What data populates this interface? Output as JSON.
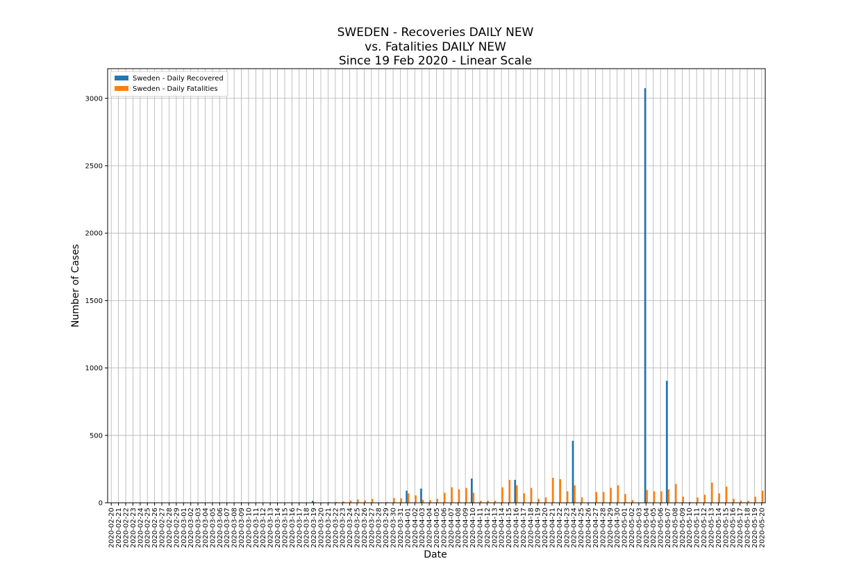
{
  "chart_data": {
    "type": "bar",
    "title": [
      "SWEDEN - Recoveries DAILY NEW",
      "vs. Fatalities DAILY NEW",
      "Since 19 Feb 2020 - Linear Scale"
    ],
    "xlabel": "Date",
    "ylabel": "Number of Cases",
    "ylim": [
      0,
      3220
    ],
    "yticks": [
      0,
      500,
      1000,
      1500,
      2000,
      2500,
      3000
    ],
    "grid": true,
    "legend_position": "top-left",
    "categories": [
      "2020-02-20",
      "2020-02-21",
      "2020-02-22",
      "2020-02-23",
      "2020-02-24",
      "2020-02-25",
      "2020-02-26",
      "2020-02-27",
      "2020-02-28",
      "2020-02-29",
      "2020-03-01",
      "2020-03-02",
      "2020-03-03",
      "2020-03-04",
      "2020-03-05",
      "2020-03-06",
      "2020-03-07",
      "2020-03-08",
      "2020-03-09",
      "2020-03-10",
      "2020-03-11",
      "2020-03-12",
      "2020-03-13",
      "2020-03-14",
      "2020-03-15",
      "2020-03-16",
      "2020-03-17",
      "2020-03-18",
      "2020-03-19",
      "2020-03-20",
      "2020-03-21",
      "2020-03-22",
      "2020-03-23",
      "2020-03-24",
      "2020-03-25",
      "2020-03-26",
      "2020-03-27",
      "2020-03-28",
      "2020-03-29",
      "2020-03-30",
      "2020-03-31",
      "2020-04-01",
      "2020-04-02",
      "2020-04-03",
      "2020-04-04",
      "2020-04-05",
      "2020-04-06",
      "2020-04-07",
      "2020-04-08",
      "2020-04-09",
      "2020-04-10",
      "2020-04-11",
      "2020-04-12",
      "2020-04-13",
      "2020-04-14",
      "2020-04-15",
      "2020-04-16",
      "2020-04-17",
      "2020-04-18",
      "2020-04-19",
      "2020-04-20",
      "2020-04-21",
      "2020-04-22",
      "2020-04-23",
      "2020-04-24",
      "2020-04-25",
      "2020-04-26",
      "2020-04-27",
      "2020-04-28",
      "2020-04-29",
      "2020-04-30",
      "2020-05-01",
      "2020-05-02",
      "2020-05-03",
      "2020-05-04",
      "2020-05-05",
      "2020-05-06",
      "2020-05-07",
      "2020-05-08",
      "2020-05-09",
      "2020-05-10",
      "2020-05-11",
      "2020-05-12",
      "2020-05-13",
      "2020-05-14",
      "2020-05-15",
      "2020-05-16",
      "2020-05-17",
      "2020-05-18",
      "2020-05-19",
      "2020-05-20"
    ],
    "series": [
      {
        "name": "Sweden - Daily Recovered",
        "color": "#1f77b4",
        "values": [
          0,
          0,
          0,
          0,
          0,
          0,
          0,
          0,
          0,
          0,
          0,
          0,
          0,
          0,
          0,
          0,
          0,
          0,
          0,
          0,
          0,
          0,
          0,
          0,
          0,
          0,
          0,
          0,
          15,
          0,
          0,
          0,
          0,
          0,
          0,
          0,
          0,
          0,
          0,
          0,
          0,
          90,
          0,
          105,
          0,
          0,
          0,
          0,
          0,
          0,
          180,
          0,
          0,
          0,
          0,
          0,
          170,
          0,
          0,
          0,
          0,
          0,
          0,
          0,
          460,
          0,
          0,
          0,
          0,
          0,
          0,
          0,
          0,
          0,
          3075,
          0,
          0,
          905,
          0,
          0,
          0,
          0,
          0,
          0,
          0,
          0,
          0,
          0,
          0,
          0,
          0
        ]
      },
      {
        "name": "Sweden - Daily Fatalities",
        "color": "#ff7f0e",
        "values": [
          0,
          0,
          0,
          0,
          0,
          0,
          0,
          0,
          0,
          0,
          0,
          0,
          0,
          0,
          0,
          0,
          0,
          0,
          0,
          0,
          1,
          0,
          0,
          1,
          2,
          3,
          3,
          3,
          5,
          3,
          5,
          6,
          10,
          16,
          25,
          18,
          29,
          2,
          6,
          35,
          33,
          70,
          55,
          22,
          20,
          30,
          75,
          115,
          100,
          110,
          75,
          15,
          15,
          15,
          115,
          170,
          130,
          70,
          110,
          30,
          40,
          185,
          175,
          85,
          130,
          40,
          3,
          80,
          80,
          110,
          130,
          65,
          20,
          3,
          95,
          85,
          85,
          100,
          140,
          45,
          5,
          40,
          60,
          150,
          70,
          120,
          30,
          15,
          15,
          45,
          90
        ]
      }
    ]
  }
}
